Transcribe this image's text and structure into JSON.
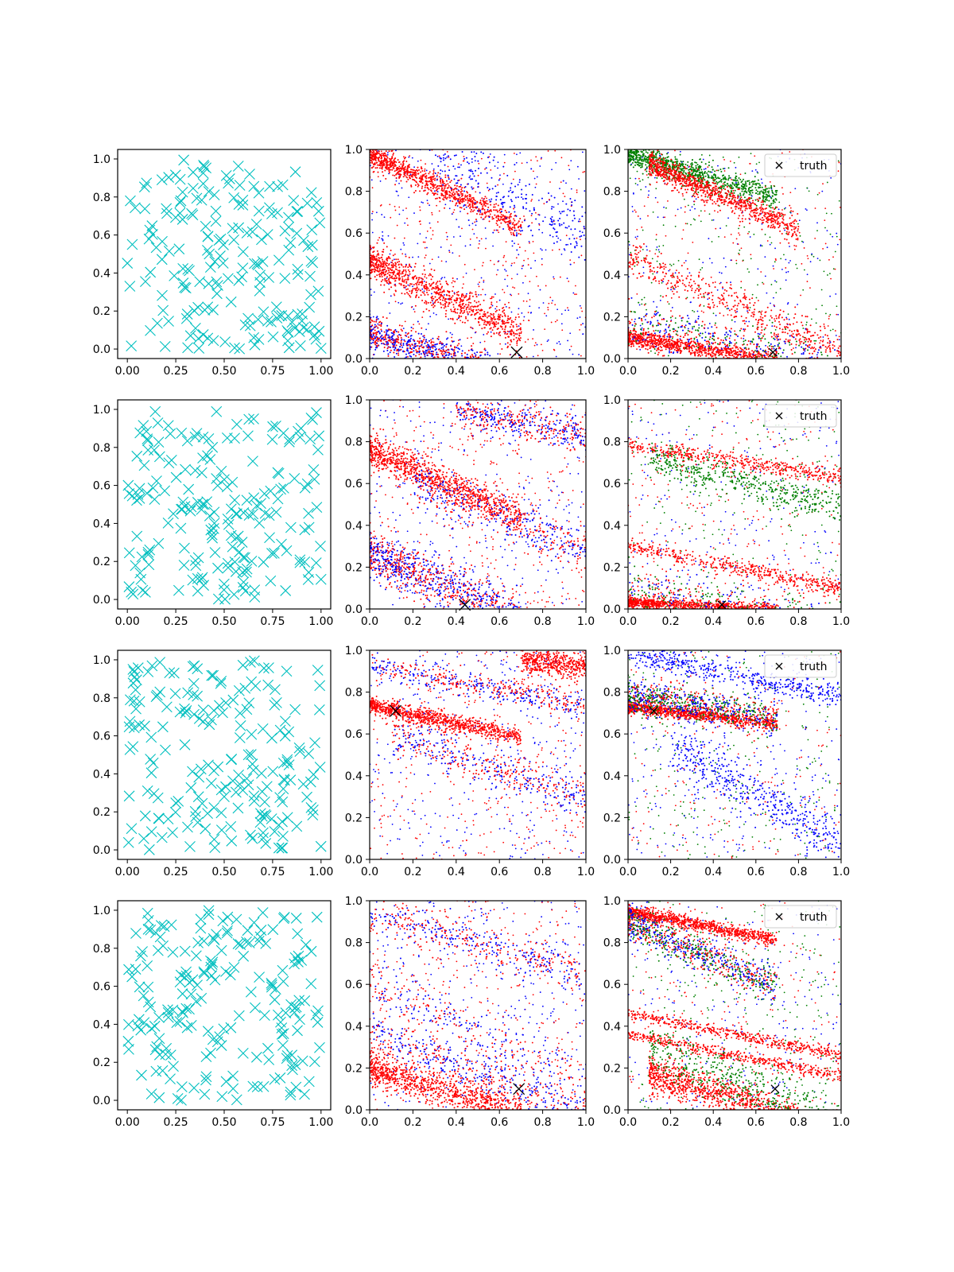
{
  "colors": {
    "prior": "#00bfbf",
    "series_red": "#ff0000",
    "series_blue": "#0000ff",
    "series_green": "#008000",
    "truth": "#000000"
  },
  "legend": {
    "truth_label": "truth",
    "placement": "top-right"
  },
  "chart_data": [
    {
      "row": 1,
      "panels": [
        {
          "type": "scatter",
          "role": "prior-samples",
          "marker": "x",
          "color": "#00bfbf",
          "xlim": [
            -0.05,
            1.05
          ],
          "ylim": [
            -0.05,
            1.05
          ],
          "xticks": [
            "0.00",
            "0.25",
            "0.50",
            "0.75",
            "1.00"
          ],
          "yticks": [
            "0.0",
            "0.2",
            "0.4",
            "0.6",
            "0.8",
            "1.0"
          ],
          "n_points": 200,
          "distribution": "uniform"
        },
        {
          "type": "scatter",
          "role": "samples-two-series",
          "xlim": [
            0,
            1
          ],
          "ylim": [
            0,
            1
          ],
          "xticks": [
            "0.0",
            "0.2",
            "0.4",
            "0.6",
            "0.8",
            "1.0"
          ],
          "yticks": [
            "0.0",
            "0.2",
            "0.4",
            "0.6",
            "0.8",
            "1.0"
          ],
          "truth": [
            0.68,
            0.03
          ],
          "show_legend": false,
          "bands": [
            {
              "x0": 0.0,
              "y0": 0.98,
              "slope": -0.5,
              "width": 0.03,
              "color": "red",
              "density": "high"
            },
            {
              "x0": 0.0,
              "y0": 0.47,
              "slope": -0.5,
              "width": 0.04,
              "color": "red",
              "density": "high"
            },
            {
              "x0": 0.0,
              "y0": 0.12,
              "slope": -0.3,
              "width": 0.04,
              "color": "mix",
              "density": "high"
            },
            {
              "x0": 0.3,
              "y0": 0.95,
              "slope": -0.5,
              "width": 0.08,
              "color": "blue",
              "density": "low"
            }
          ]
        },
        {
          "type": "scatter",
          "role": "samples-three-series",
          "xlim": [
            0,
            1
          ],
          "ylim": [
            0,
            1
          ],
          "xticks": [
            "0.0",
            "0.2",
            "0.4",
            "0.6",
            "0.8",
            "1.0"
          ],
          "yticks": [
            "0.0",
            "0.2",
            "0.4",
            "0.6",
            "0.8",
            "1.0"
          ],
          "truth": [
            0.68,
            0.03
          ],
          "show_legend": true,
          "bands": [
            {
              "x0": 0.0,
              "y0": 0.98,
              "slope": -0.3,
              "width": 0.03,
              "color": "green",
              "density": "high"
            },
            {
              "x0": 0.1,
              "y0": 0.93,
              "slope": -0.45,
              "width": 0.03,
              "color": "red",
              "density": "high"
            },
            {
              "x0": 0.0,
              "y0": 0.48,
              "slope": -0.45,
              "width": 0.04,
              "color": "red",
              "density": "medium"
            },
            {
              "x0": 0.0,
              "y0": 0.1,
              "slope": -0.15,
              "width": 0.02,
              "color": "red",
              "density": "high"
            },
            {
              "x0": 0.0,
              "y0": 0.18,
              "slope": -0.2,
              "width": 0.05,
              "color": "mix3",
              "density": "medium"
            }
          ]
        }
      ]
    },
    {
      "row": 2,
      "panels": [
        {
          "type": "scatter",
          "role": "prior-samples",
          "marker": "x",
          "color": "#00bfbf",
          "xlim": [
            -0.05,
            1.05
          ],
          "ylim": [
            -0.05,
            1.05
          ],
          "xticks": [
            "0.00",
            "0.25",
            "0.50",
            "0.75",
            "1.00"
          ],
          "yticks": [
            "0.0",
            "0.2",
            "0.4",
            "0.6",
            "0.8",
            "1.0"
          ],
          "n_points": 200,
          "distribution": "uniform"
        },
        {
          "type": "scatter",
          "role": "samples-two-series",
          "xlim": [
            0,
            1
          ],
          "ylim": [
            0,
            1
          ],
          "xticks": [
            "0.0",
            "0.2",
            "0.4",
            "0.6",
            "0.8",
            "1.0"
          ],
          "yticks": [
            "0.0",
            "0.2",
            "0.4",
            "0.6",
            "0.8",
            "1.0"
          ],
          "truth": [
            0.44,
            0.02
          ],
          "show_legend": false,
          "bands": [
            {
              "x0": 0.0,
              "y0": 0.76,
              "slope": -0.45,
              "width": 0.04,
              "color": "red",
              "density": "high"
            },
            {
              "x0": 0.0,
              "y0": 0.27,
              "slope": -0.45,
              "width": 0.06,
              "color": "mix",
              "density": "high"
            },
            {
              "x0": 0.4,
              "y0": 0.95,
              "slope": -0.2,
              "width": 0.04,
              "color": "mix",
              "density": "medium"
            },
            {
              "x0": 0.2,
              "y0": 0.6,
              "slope": -0.4,
              "width": 0.05,
              "color": "mix",
              "density": "medium"
            }
          ]
        },
        {
          "type": "scatter",
          "role": "samples-three-series",
          "xlim": [
            0,
            1
          ],
          "ylim": [
            0,
            1
          ],
          "xticks": [
            "0.0",
            "0.2",
            "0.4",
            "0.6",
            "0.8",
            "1.0"
          ],
          "yticks": [
            "0.0",
            "0.2",
            "0.4",
            "0.6",
            "0.8",
            "1.0"
          ],
          "truth": [
            0.44,
            0.02
          ],
          "show_legend": true,
          "bands": [
            {
              "x0": 0.0,
              "y0": 0.03,
              "slope": -0.05,
              "width": 0.015,
              "color": "red",
              "density": "high"
            },
            {
              "x0": 0.0,
              "y0": 0.3,
              "slope": -0.2,
              "width": 0.02,
              "color": "red",
              "density": "medium"
            },
            {
              "x0": 0.0,
              "y0": 0.78,
              "slope": -0.15,
              "width": 0.02,
              "color": "red",
              "density": "medium"
            },
            {
              "x0": 0.1,
              "y0": 0.72,
              "slope": -0.25,
              "width": 0.04,
              "color": "green",
              "density": "medium"
            },
            {
              "x0": 0.0,
              "y0": 0.12,
              "slope": -0.2,
              "width": 0.05,
              "color": "mix3",
              "density": "medium"
            }
          ]
        }
      ]
    },
    {
      "row": 3,
      "panels": [
        {
          "type": "scatter",
          "role": "prior-samples",
          "marker": "x",
          "color": "#00bfbf",
          "xlim": [
            -0.05,
            1.05
          ],
          "ylim": [
            -0.05,
            1.05
          ],
          "xticks": [
            "0.00",
            "0.25",
            "0.50",
            "0.75",
            "1.00"
          ],
          "yticks": [
            "0.0",
            "0.2",
            "0.4",
            "0.6",
            "0.8",
            "1.0"
          ],
          "n_points": 200,
          "distribution": "uniform"
        },
        {
          "type": "scatter",
          "role": "samples-two-series",
          "xlim": [
            0,
            1
          ],
          "ylim": [
            0,
            1
          ],
          "xticks": [
            "0.0",
            "0.2",
            "0.4",
            "0.6",
            "0.8",
            "1.0"
          ],
          "yticks": [
            "0.0",
            "0.2",
            "0.4",
            "0.6",
            "0.8",
            "1.0"
          ],
          "truth": [
            0.12,
            0.71
          ],
          "show_legend": false,
          "bands": [
            {
              "x0": 0.0,
              "y0": 0.74,
              "slope": -0.22,
              "width": 0.02,
              "color": "red",
              "density": "high"
            },
            {
              "x0": 0.0,
              "y0": 0.93,
              "slope": -0.2,
              "width": 0.03,
              "color": "mix",
              "density": "medium"
            },
            {
              "x0": 0.7,
              "y0": 0.95,
              "slope": -0.1,
              "width": 0.03,
              "color": "red",
              "density": "medium"
            },
            {
              "x0": 0.1,
              "y0": 0.6,
              "slope": -0.35,
              "width": 0.05,
              "color": "mix",
              "density": "medium"
            }
          ]
        },
        {
          "type": "scatter",
          "role": "samples-three-series",
          "xlim": [
            0,
            1
          ],
          "ylim": [
            0,
            1
          ],
          "xticks": [
            "0.0",
            "0.2",
            "0.4",
            "0.6",
            "0.8",
            "1.0"
          ],
          "yticks": [
            "0.0",
            "0.2",
            "0.4",
            "0.6",
            "0.8",
            "1.0"
          ],
          "truth": [
            0.12,
            0.71
          ],
          "show_legend": true,
          "bands": [
            {
              "x0": 0.0,
              "y0": 0.73,
              "slope": -0.12,
              "width": 0.015,
              "color": "red",
              "density": "high"
            },
            {
              "x0": 0.0,
              "y0": 0.78,
              "slope": -0.15,
              "width": 0.04,
              "color": "mix3",
              "density": "high"
            },
            {
              "x0": 0.2,
              "y0": 0.55,
              "slope": -0.6,
              "width": 0.06,
              "color": "blue",
              "density": "medium"
            },
            {
              "x0": 0.0,
              "y0": 0.98,
              "slope": -0.2,
              "width": 0.03,
              "color": "blue",
              "density": "medium"
            }
          ]
        }
      ]
    },
    {
      "row": 4,
      "panels": [
        {
          "type": "scatter",
          "role": "prior-samples",
          "marker": "x",
          "color": "#00bfbf",
          "xlim": [
            -0.05,
            1.05
          ],
          "ylim": [
            -0.05,
            1.05
          ],
          "xticks": [
            "0.00",
            "0.25",
            "0.50",
            "0.75",
            "1.00"
          ],
          "yticks": [
            "0.0",
            "0.2",
            "0.4",
            "0.6",
            "0.8",
            "1.0"
          ],
          "n_points": 200,
          "distribution": "uniform"
        },
        {
          "type": "scatter",
          "role": "samples-two-series",
          "xlim": [
            0,
            1
          ],
          "ylim": [
            0,
            1
          ],
          "xticks": [
            "0.0",
            "0.2",
            "0.4",
            "0.6",
            "0.8",
            "1.0"
          ],
          "yticks": [
            "0.0",
            "0.2",
            "0.4",
            "0.6",
            "0.8",
            "1.0"
          ],
          "truth": [
            0.69,
            0.1
          ],
          "show_legend": false,
          "bands": [
            {
              "x0": 0.0,
              "y0": 0.2,
              "slope": -0.3,
              "width": 0.04,
              "color": "red",
              "density": "high"
            },
            {
              "x0": 0.0,
              "y0": 0.38,
              "slope": -0.4,
              "width": 0.05,
              "color": "mix",
              "density": "medium"
            },
            {
              "x0": 0.0,
              "y0": 0.95,
              "slope": -0.3,
              "width": 0.05,
              "color": "mix",
              "density": "medium"
            },
            {
              "x0": 0.0,
              "y0": 0.62,
              "slope": -0.5,
              "width": 0.06,
              "color": "mix",
              "density": "low"
            }
          ]
        },
        {
          "type": "scatter",
          "role": "samples-three-series",
          "xlim": [
            0,
            1
          ],
          "ylim": [
            0,
            1
          ],
          "xticks": [
            "0.0",
            "0.2",
            "0.4",
            "0.6",
            "0.8",
            "1.0"
          ],
          "yticks": [
            "0.0",
            "0.2",
            "0.4",
            "0.6",
            "0.8",
            "1.0"
          ],
          "truth": [
            0.69,
            0.1
          ],
          "show_legend": true,
          "bands": [
            {
              "x0": 0.0,
              "y0": 0.95,
              "slope": -0.2,
              "width": 0.015,
              "color": "red",
              "density": "high"
            },
            {
              "x0": 0.0,
              "y0": 0.9,
              "slope": -0.45,
              "width": 0.04,
              "color": "mix3",
              "density": "high"
            },
            {
              "x0": 0.0,
              "y0": 0.46,
              "slope": -0.2,
              "width": 0.015,
              "color": "red",
              "density": "medium"
            },
            {
              "x0": 0.0,
              "y0": 0.36,
              "slope": -0.2,
              "width": 0.015,
              "color": "red",
              "density": "medium"
            },
            {
              "x0": 0.1,
              "y0": 0.17,
              "slope": -0.3,
              "width": 0.04,
              "color": "red",
              "density": "high"
            },
            {
              "x0": 0.1,
              "y0": 0.3,
              "slope": -0.4,
              "width": 0.06,
              "color": "green",
              "density": "medium"
            }
          ]
        }
      ]
    }
  ]
}
